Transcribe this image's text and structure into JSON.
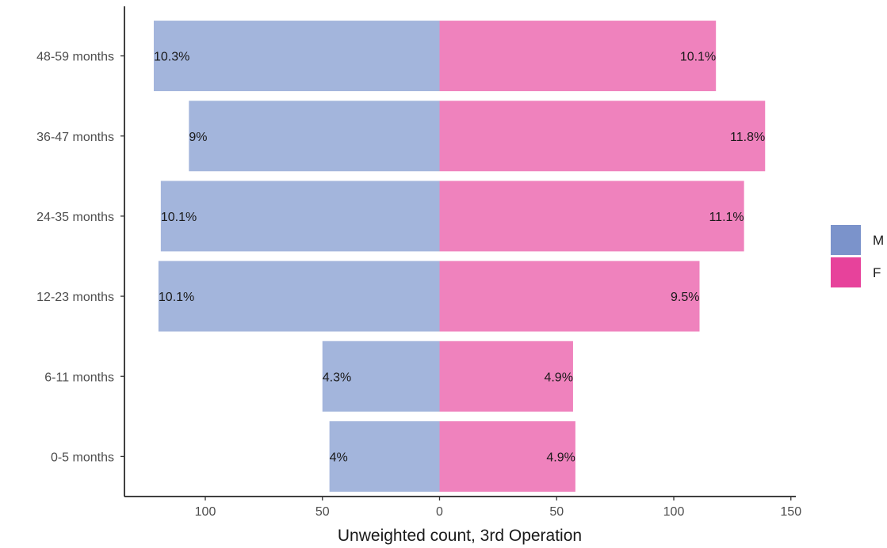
{
  "chart_data": {
    "type": "bar",
    "orientation": "horizontal",
    "categories": [
      "0-5 months",
      "6-11 months",
      "12-23 months",
      "24-35 months",
      "36-47 months",
      "48-59 months"
    ],
    "series": [
      {
        "name": "M",
        "color": "#7b93cb",
        "fill_color": "#a3b5dc",
        "values": [
          47,
          50,
          120,
          119,
          107,
          122
        ],
        "labels": [
          "4%",
          "4.3%",
          "10.1%",
          "10.1%",
          "9%",
          "10.3%"
        ],
        "direction": "left"
      },
      {
        "name": "F",
        "color": "#e7429b",
        "fill_color": "#ef82bd",
        "values": [
          58,
          57,
          111,
          130,
          139,
          118
        ],
        "labels": [
          "4.9%",
          "4.9%",
          "9.5%",
          "11.1%",
          "11.8%",
          "10.1%"
        ],
        "direction": "right"
      }
    ],
    "xlabel": "Unweighted count, 3rd Operation",
    "ylabel": "",
    "xticks": [
      -100,
      -50,
      0,
      50,
      100,
      150
    ],
    "xtick_labels": [
      "100",
      "50",
      "0",
      "50",
      "100",
      "150"
    ],
    "xlim": [
      -135,
      150
    ],
    "grid": false,
    "legend_position": "right"
  }
}
